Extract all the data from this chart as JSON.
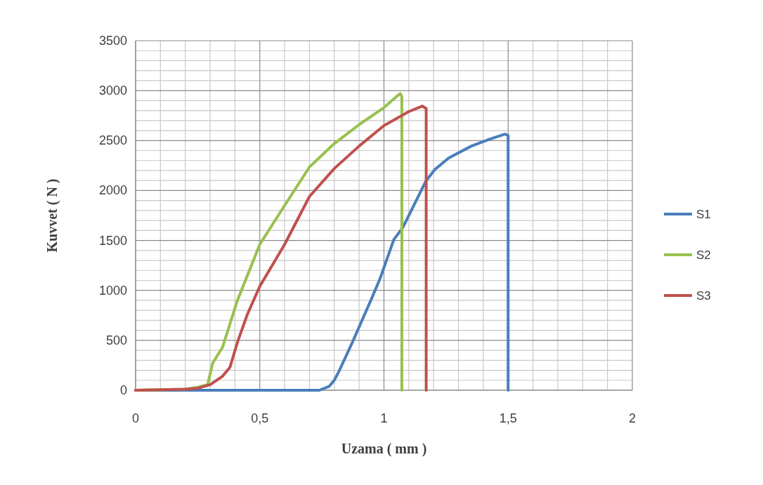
{
  "chart_data": {
    "type": "line",
    "xlabel": "Uzama  ( mm  )",
    "ylabel": "Kuvvet  ( N )",
    "xlim": [
      0,
      2
    ],
    "xticks": [
      0,
      {
        "value": 0.5,
        "label": "0,5"
      },
      1,
      {
        "value": 1.5,
        "label": "1,5"
      },
      2
    ],
    "ylim": [
      0,
      3500
    ],
    "yticks": [
      0,
      500,
      1000,
      1500,
      2000,
      2500,
      3000,
      3500
    ],
    "grid": true,
    "legend": "right",
    "line_style": "solid",
    "marker": "none",
    "series": [
      {
        "name": "S1",
        "color": "#4a7ebb",
        "x": [
          0,
          0.5,
          0.74,
          0.78,
          0.8,
          0.817,
          0.873,
          0.947,
          0.983,
          1.04,
          1.075,
          1.169,
          1.205,
          1.26,
          1.352,
          1.427,
          1.487,
          1.5,
          1.5
        ],
        "values": [
          0,
          0,
          0,
          40,
          100,
          180,
          480,
          900,
          1110,
          1510,
          1625,
          2095,
          2210,
          2325,
          2445,
          2515,
          2565,
          2550,
          0
        ]
      },
      {
        "name": "S2",
        "color": "#98c04f",
        "x": [
          0,
          0.1,
          0.2,
          0.25,
          0.29,
          0.31,
          0.35,
          0.41,
          0.5,
          0.6,
          0.7,
          0.8,
          0.9,
          1.0,
          1.05,
          1.066,
          1.072,
          1.072
        ],
        "values": [
          0,
          5,
          10,
          30,
          56,
          270,
          430,
          900,
          1460,
          1850,
          2235,
          2470,
          2660,
          2830,
          2940,
          2970,
          2940,
          0
        ]
      },
      {
        "name": "S3",
        "color": "#c0504d",
        "x": [
          0,
          0.1,
          0.2,
          0.25,
          0.3,
          0.35,
          0.38,
          0.41,
          0.45,
          0.5,
          0.6,
          0.7,
          0.8,
          0.9,
          1.0,
          1.1,
          1.155,
          1.17,
          1.17
        ],
        "values": [
          0,
          5,
          10,
          20,
          55,
          140,
          230,
          480,
          760,
          1040,
          1460,
          1940,
          2220,
          2445,
          2650,
          2790,
          2846,
          2820,
          0
        ]
      }
    ]
  }
}
